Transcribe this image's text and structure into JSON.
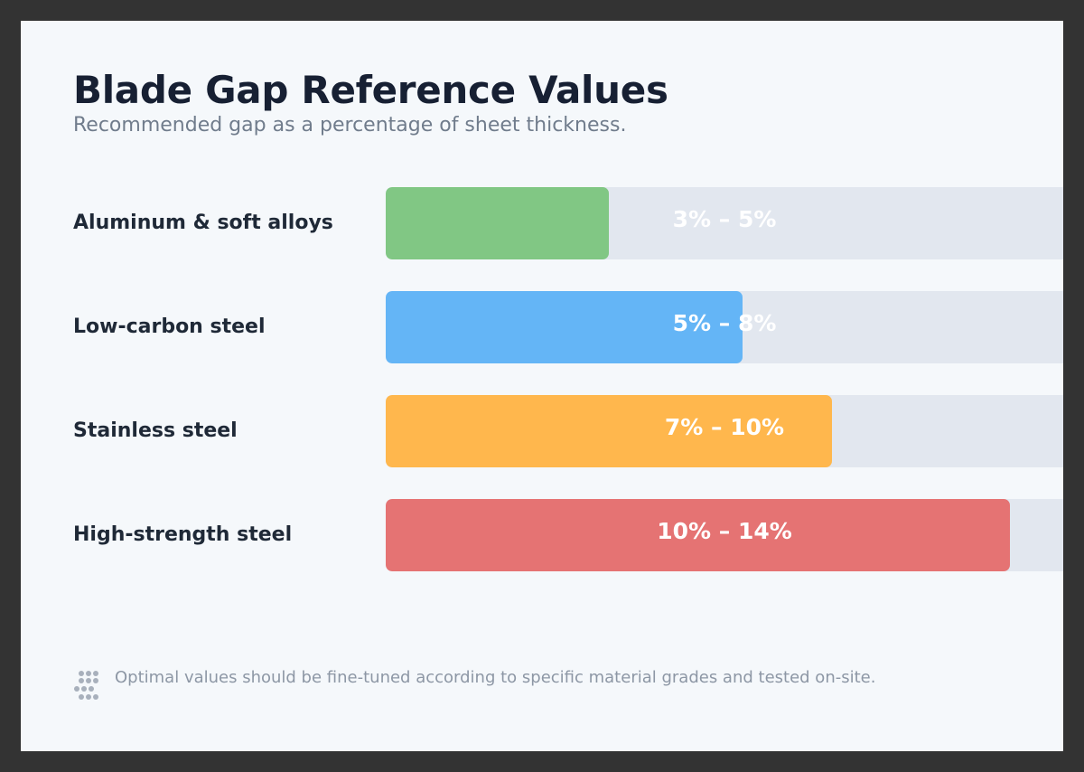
{
  "title": "Blade Gap Reference Values",
  "subtitle": "Recommended gap as a percentage of sheet thickness.",
  "chart_data": {
    "type": "bar",
    "orientation": "horizontal",
    "title": "Blade Gap Reference Values",
    "subtitle": "Recommended gap as a percentage of sheet thickness.",
    "unit": "%",
    "xlim": [
      0,
      15.4
    ],
    "categories": [
      "Aluminum & soft alloys",
      "Low-carbon steel",
      "Stainless steel",
      "High-strength steel"
    ],
    "ranges": [
      {
        "label": "3% – 5%",
        "min": 3,
        "max": 5
      },
      {
        "label": "5% – 8%",
        "min": 5,
        "max": 8
      },
      {
        "label": "7% – 10%",
        "min": 7,
        "max": 10
      },
      {
        "label": "10% – 14%",
        "min": 10,
        "max": 14
      }
    ],
    "colors": [
      "#81c784",
      "#64b5f6",
      "#ffb74d",
      "#e57373"
    ],
    "track_color": "#e2e7ef"
  },
  "footnote": {
    "icon": "dots-grid-icon",
    "text": "Optimal values should be fine-tuned according to specific material grades and tested on-site."
  }
}
